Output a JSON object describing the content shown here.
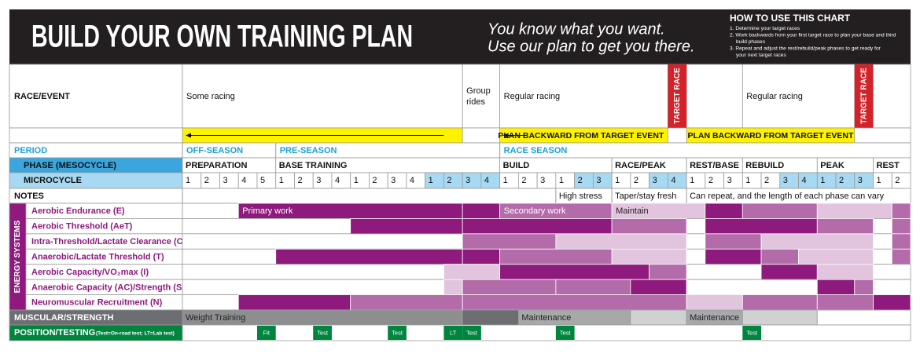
{
  "header": {
    "title": "BUILD YOUR OWN TRAINING PLAN",
    "tagline": [
      "You know what you want.",
      "Use our plan to get you there."
    ],
    "how_to": {
      "title": "HOW TO USE THIS CHART",
      "steps": [
        "1. Determine your target races",
        "2. Work backwards from your first target race to plan your base and third",
        "build phases",
        "3. Repeat and adjust the rest/rebuild/peak phases to get ready for",
        "your next target races"
      ]
    }
  },
  "race_event": {
    "label": "RACE/EVENT",
    "some_racing": "Some racing",
    "group_rides": [
      "Group",
      "rides"
    ],
    "regular_racing": [
      "Regular racing",
      "Regular racing"
    ],
    "target_race": [
      "TARGET RACE",
      "TARGET RACE"
    ]
  },
  "plan_backward": [
    "PLAN BACKWARD FROM TARGET EVENT",
    "PLAN BACKWARD FROM TARGET EVENT"
  ],
  "period": {
    "label": "PERIOD",
    "cells": [
      "OFF-SEASON",
      "PRE-SEASON",
      "RACE SEASON"
    ]
  },
  "phase": {
    "label": "PHASE (MESOCYCLE)",
    "cells": [
      "PREPARATION",
      "BASE TRAINING",
      "BUILD",
      "RACE/PEAK",
      "REST/BASE",
      "REBUILD",
      "PEAK",
      "REST"
    ]
  },
  "microcycle": {
    "label": "MICROCYCLE",
    "cells": [
      1,
      2,
      3,
      4,
      5,
      1,
      2,
      3,
      4,
      1,
      2,
      3,
      4,
      1,
      2,
      3,
      4,
      1,
      2,
      3,
      1,
      2,
      3,
      1,
      2,
      3,
      4,
      1,
      2,
      3,
      1,
      2,
      3,
      4,
      1,
      2,
      3,
      1,
      2
    ]
  },
  "notes": {
    "label": "NOTES",
    "cells": [
      "High stress",
      "Taper/stay fresh",
      "Can repeat, and the length of each phase can vary"
    ]
  },
  "energy_systems": {
    "label": "ENERGY SYSTEMS",
    "rows": [
      "Aerobic Endurance (E)",
      "Aerobic Threshold (AeT)",
      "Intra-Threshold/Lactate Clearance (C)",
      "Anaerobic/Lactate Threshold (T)",
      "Aerobic Capacity/VO₂max (I)",
      "Anaerobic Capacity (AC)/Strength (S)",
      "Neuromuscular Recruitment (N)"
    ],
    "work": [
      "Primary work",
      "Secondary work",
      "Maintain"
    ]
  },
  "muscular": {
    "label": "MUSCULAR/STRENGTH",
    "cells": [
      "Weight Training",
      "Maintenance",
      "Maintenance"
    ]
  },
  "testing": {
    "label": "POSITION/TESTING",
    "note": "(Test=On-road test; LT=Lab test)",
    "marks": [
      "Fit",
      "Test",
      "Test",
      "LT",
      "Test",
      "Test",
      "Test"
    ]
  }
}
